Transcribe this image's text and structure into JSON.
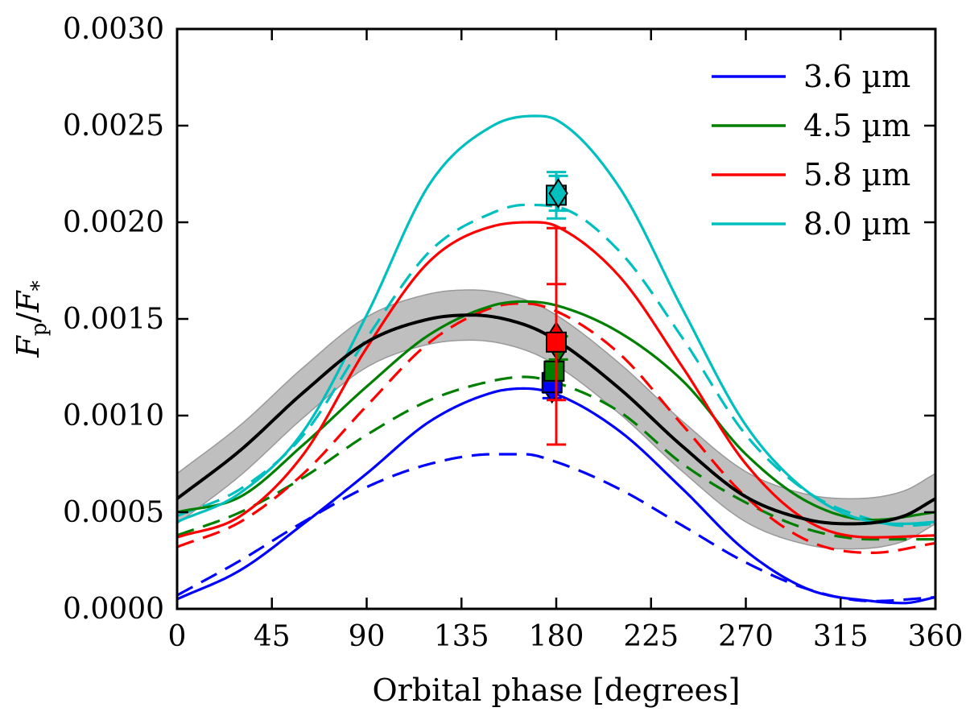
{
  "chart_data": {
    "type": "line",
    "title": "",
    "xlabel": "Orbital phase [degrees]",
    "ylabel": "F_p/F_*",
    "ylabel_parts": {
      "f1": "F",
      "sub1": "p",
      "slash": "/",
      "f2": "F",
      "sub2": "*"
    },
    "xlim": [
      0,
      360
    ],
    "ylim": [
      0,
      0.003
    ],
    "xticks": [
      0,
      45,
      90,
      135,
      180,
      225,
      270,
      315,
      360
    ],
    "xtick_labels": [
      "0",
      "45",
      "90",
      "135",
      "180",
      "225",
      "270",
      "315",
      "360"
    ],
    "yticks": [
      0,
      0.0005,
      0.001,
      0.0015,
      0.002,
      0.0025,
      0.003
    ],
    "ytick_labels": [
      "0.0000",
      "0.0005",
      "0.0010",
      "0.0015",
      "0.0020",
      "0.0025",
      "0.0030"
    ],
    "legend_position": "top-right",
    "grid": false,
    "colors": {
      "3.6": "#0000ff",
      "4.5": "#007f00",
      "5.8": "#ff0000",
      "8.0": "#00bfbf",
      "fit": "#000000",
      "band": "#aaaaaa"
    },
    "series": [
      {
        "name": "3.6 µm",
        "key": "3.6",
        "style": "solid",
        "legend": true,
        "x": [
          0,
          30,
          60,
          90,
          120,
          150,
          165,
          180,
          210,
          240,
          270,
          300,
          330,
          345,
          360
        ],
        "values": [
          5e-05,
          0.0002,
          0.00044,
          0.0007,
          0.00097,
          0.00112,
          0.00114,
          0.00111,
          0.00092,
          0.00062,
          0.0003,
          0.0001,
          4e-05,
          3e-05,
          6e-05
        ]
      },
      {
        "name": "3.6 µm model (dashed)",
        "key": "3.6",
        "style": "dashed",
        "legend": false,
        "x": [
          0,
          30,
          60,
          90,
          120,
          150,
          165,
          180,
          210,
          240,
          270,
          300,
          330,
          360
        ],
        "values": [
          7e-05,
          0.00025,
          0.00045,
          0.00063,
          0.00075,
          0.0008,
          0.0008,
          0.00076,
          0.00062,
          0.00043,
          0.00024,
          0.0001,
          4e-05,
          6e-05
        ]
      },
      {
        "name": "4.5 µm",
        "key": "4.5",
        "style": "solid",
        "legend": true,
        "x": [
          0,
          30,
          60,
          90,
          120,
          150,
          165,
          180,
          210,
          240,
          270,
          300,
          330,
          360
        ],
        "values": [
          0.0005,
          0.00058,
          0.00085,
          0.00115,
          0.00142,
          0.00157,
          0.00159,
          0.00157,
          0.00143,
          0.00118,
          0.0008,
          0.00055,
          0.00046,
          0.0005
        ]
      },
      {
        "name": "4.5 µm model (dashed)",
        "key": "4.5",
        "style": "dashed",
        "legend": false,
        "x": [
          0,
          30,
          60,
          90,
          120,
          150,
          165,
          180,
          210,
          240,
          270,
          300,
          330,
          360
        ],
        "values": [
          0.00038,
          0.0005,
          0.00068,
          0.0009,
          0.00108,
          0.00118,
          0.0012,
          0.00117,
          0.00102,
          0.00075,
          0.00055,
          0.00041,
          0.00036,
          0.00036
        ]
      },
      {
        "name": "5.8 µm",
        "key": "5.8",
        "style": "solid",
        "legend": true,
        "x": [
          0,
          30,
          60,
          90,
          120,
          150,
          170,
          180,
          210,
          240,
          270,
          300,
          330,
          360
        ],
        "values": [
          0.00037,
          0.00048,
          0.0008,
          0.00135,
          0.0018,
          0.00198,
          0.002,
          0.00198,
          0.00172,
          0.00125,
          0.00075,
          0.00045,
          0.00037,
          0.00038
        ]
      },
      {
        "name": "5.8 µm model (dashed)",
        "key": "5.8",
        "style": "dashed",
        "legend": false,
        "x": [
          0,
          30,
          60,
          90,
          120,
          150,
          165,
          180,
          210,
          240,
          270,
          300,
          330,
          360
        ],
        "values": [
          0.00032,
          0.00045,
          0.0007,
          0.00105,
          0.00138,
          0.00156,
          0.00158,
          0.00154,
          0.00132,
          0.00095,
          0.00058,
          0.00035,
          0.00029,
          0.00034
        ]
      },
      {
        "name": "8.0 µm",
        "key": "8.0",
        "style": "solid",
        "legend": true,
        "x": [
          0,
          30,
          60,
          90,
          120,
          150,
          170,
          180,
          210,
          240,
          270,
          300,
          330,
          345,
          360
        ],
        "values": [
          0.00045,
          0.0006,
          0.00092,
          0.00152,
          0.0022,
          0.0025,
          0.00255,
          0.00253,
          0.00218,
          0.00155,
          0.00095,
          0.0006,
          0.00045,
          0.00044,
          0.00045
        ]
      },
      {
        "name": "8.0 µm model (dashed)",
        "key": "8.0",
        "style": "dashed",
        "legend": false,
        "x": [
          0,
          30,
          60,
          90,
          120,
          150,
          165,
          180,
          210,
          240,
          270,
          300,
          330,
          345,
          360
        ],
        "values": [
          0.00048,
          0.00062,
          0.0009,
          0.0014,
          0.00185,
          0.00205,
          0.00209,
          0.00208,
          0.00185,
          0.0014,
          0.0009,
          0.0006,
          0.00046,
          0.00043,
          0.00044
        ]
      },
      {
        "name": "Best-fit phase curve",
        "key": "fit",
        "style": "solid",
        "legend": false,
        "x": [
          0,
          30,
          60,
          90,
          120,
          140,
          165,
          180,
          210,
          240,
          270,
          300,
          320,
          345,
          360
        ],
        "values": [
          0.00057,
          0.00082,
          0.00112,
          0.00138,
          0.0015,
          0.00152,
          0.00147,
          0.00139,
          0.00114,
          0.00084,
          0.00058,
          0.00046,
          0.00044,
          0.00048,
          0.00057
        ]
      }
    ],
    "uncertainty_band": {
      "name": "Best-fit 1σ band",
      "half_width": 0.00013
    },
    "data_points": [
      {
        "series": "3.6 µm",
        "key": "3.6",
        "marker": "diamond",
        "x": 178,
        "y": 0.00114,
        "yerr": 5e-05
      },
      {
        "series": "3.6 µm",
        "key": "3.6",
        "marker": "square",
        "x": 178,
        "y": 0.00117,
        "yerr": 5e-05
      },
      {
        "series": "4.5 µm",
        "key": "4.5",
        "marker": "square",
        "x": 179,
        "y": 0.00123,
        "yerr": 5e-05
      },
      {
        "series": "4.5 µm",
        "key": "4.5",
        "marker": "diamond",
        "x": 181,
        "y": 0.00135,
        "yerr": 6e-05
      },
      {
        "series": "5.8 µm",
        "key": "5.8",
        "marker": "diamond",
        "x": 180,
        "y": 0.00141,
        "yerr": 0.00056
      },
      {
        "series": "5.8 µm",
        "key": "5.8",
        "marker": "square",
        "x": 180,
        "y": 0.00138,
        "yerr": 0.0003
      },
      {
        "series": "8.0 µm",
        "key": "8.0",
        "marker": "square",
        "x": 180,
        "y": 0.00214,
        "yerr": 0.00012
      },
      {
        "series": "8.0 µm",
        "key": "8.0",
        "marker": "diamond",
        "x": 181,
        "y": 0.00215,
        "yerr": 9e-05
      }
    ],
    "legend": [
      {
        "label": "3.6 µm",
        "key": "3.6"
      },
      {
        "label": "4.5 µm",
        "key": "4.5"
      },
      {
        "label": "5.8 µm",
        "key": "5.8"
      },
      {
        "label": "8.0 µm",
        "key": "8.0"
      }
    ]
  }
}
